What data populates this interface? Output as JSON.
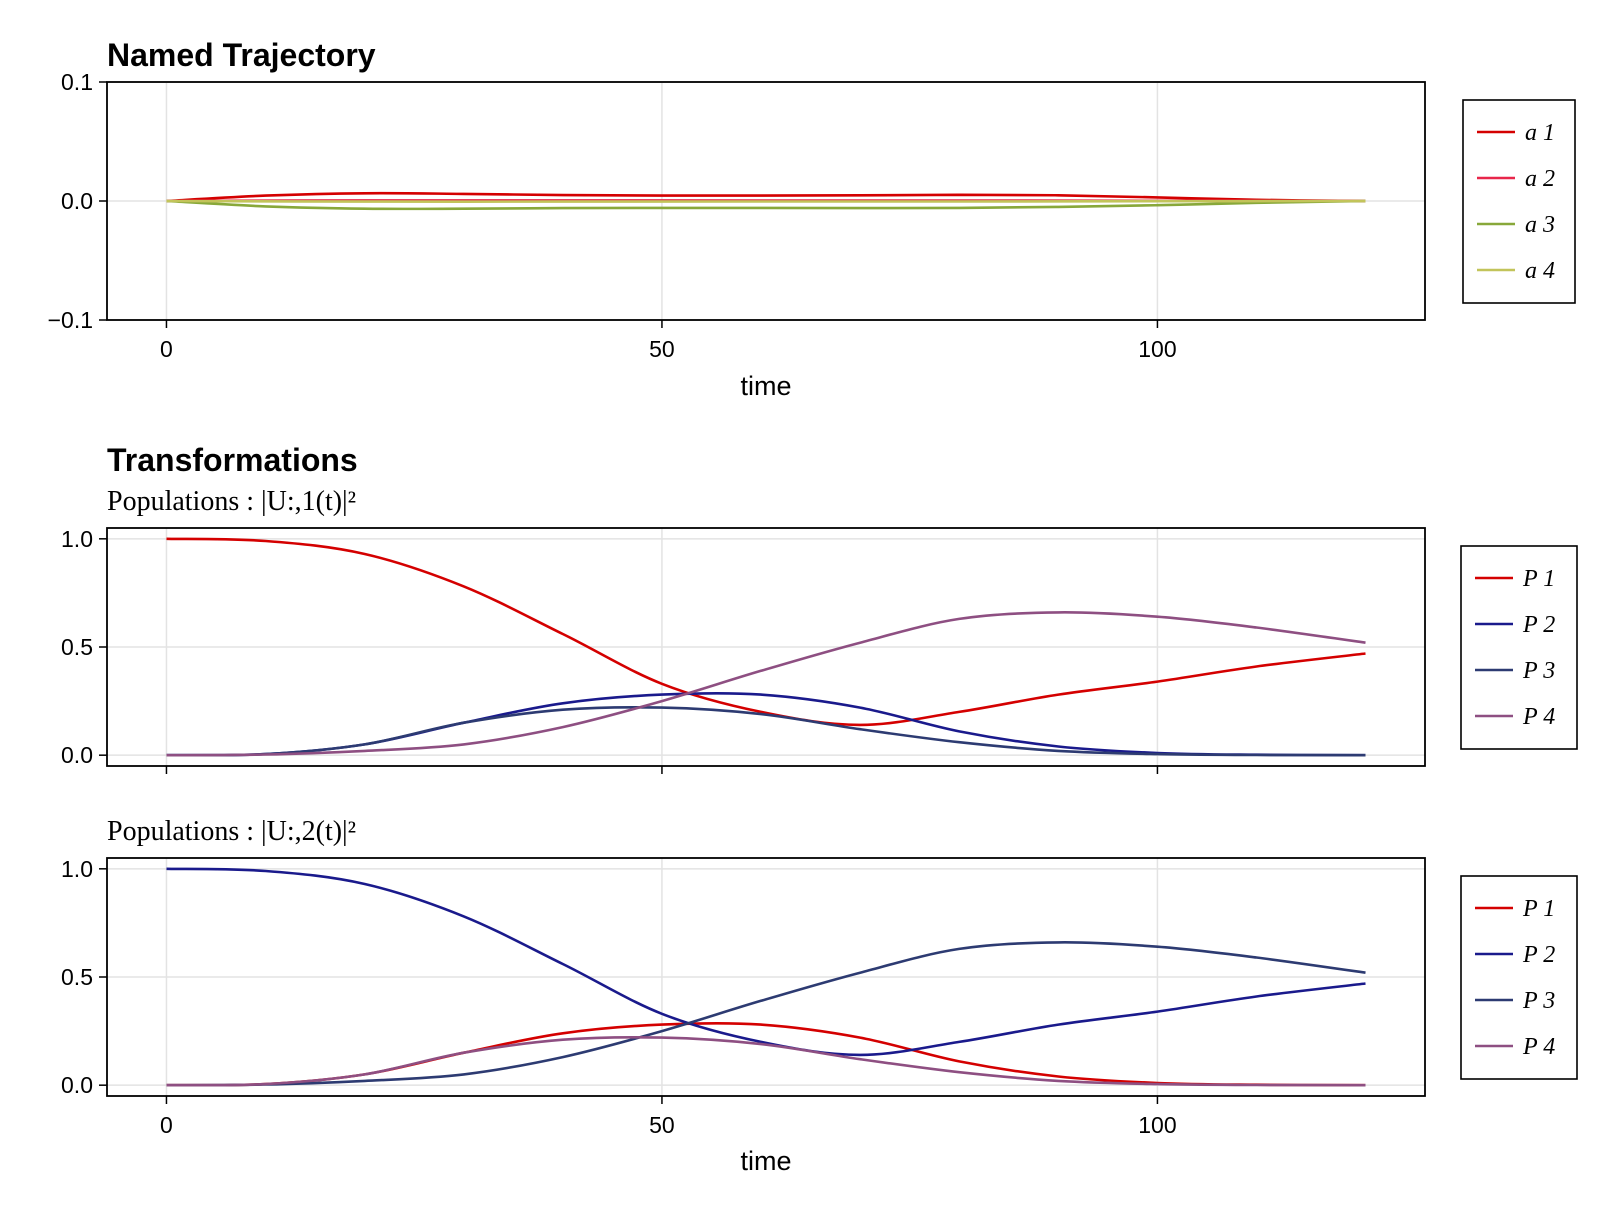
{
  "chart_data": [
    {
      "type": "line",
      "title": "Named Trajectory",
      "subtitle": "",
      "xlabel": "time",
      "ylabel": "",
      "xlim": [
        -6,
        127
      ],
      "ylim": [
        -0.1,
        0.1
      ],
      "xticks": [
        0,
        50,
        100
      ],
      "yticks": [
        -0.1,
        0.0,
        0.1
      ],
      "ytick_labels": [
        "−0.1",
        "0.0",
        "0.1"
      ],
      "grid": true,
      "legend": "right",
      "series": [
        {
          "name": "a 1",
          "color": "#d40000",
          "x": [
            0,
            10,
            20,
            30,
            40,
            50,
            60,
            70,
            80,
            90,
            100,
            110,
            121
          ],
          "y": [
            0,
            0.0045,
            0.0065,
            0.006,
            0.005,
            0.0045,
            0.0045,
            0.0048,
            0.0052,
            0.0048,
            0.003,
            0.001,
            0
          ]
        },
        {
          "name": "a 2",
          "color": "#e8264a",
          "x": [
            0,
            20,
            40,
            60,
            80,
            100,
            121
          ],
          "y": [
            0,
            0.0005,
            0.0005,
            0.0004,
            0.0004,
            0.0002,
            0
          ]
        },
        {
          "name": "a 3",
          "color": "#88a83a",
          "x": [
            0,
            10,
            20,
            30,
            40,
            50,
            60,
            70,
            80,
            90,
            100,
            110,
            121
          ],
          "y": [
            0,
            -0.0045,
            -0.0065,
            -0.0065,
            -0.006,
            -0.0058,
            -0.0058,
            -0.006,
            -0.0058,
            -0.005,
            -0.0035,
            -0.0015,
            0
          ]
        },
        {
          "name": "a 4",
          "color": "#c2c45a",
          "x": [
            0,
            20,
            40,
            60,
            80,
            100,
            121
          ],
          "y": [
            0,
            -0.0005,
            -0.0005,
            -0.0004,
            -0.0004,
            -0.0002,
            0
          ]
        }
      ]
    },
    {
      "type": "line",
      "title": "Transformations",
      "subtitle": "Populations : |U:,1(t)|²",
      "xlabel": "",
      "ylabel": "",
      "xlim": [
        -6,
        127
      ],
      "ylim": [
        -0.05,
        1.05
      ],
      "xticks": [
        0,
        50,
        100
      ],
      "yticks": [
        0.0,
        0.5,
        1.0
      ],
      "ytick_labels": [
        "0.0",
        "0.5",
        "1.0"
      ],
      "grid": true,
      "legend": "right",
      "series": [
        {
          "name": "P 1",
          "color": "#d40000",
          "x": [
            0,
            10,
            20,
            30,
            40,
            50,
            60,
            70,
            80,
            90,
            100,
            110,
            121
          ],
          "y": [
            1.0,
            0.99,
            0.93,
            0.78,
            0.56,
            0.33,
            0.2,
            0.14,
            0.2,
            0.28,
            0.34,
            0.41,
            0.47
          ]
        },
        {
          "name": "P 2",
          "color": "#1a1a8c",
          "x": [
            0,
            10,
            20,
            30,
            40,
            50,
            60,
            70,
            80,
            90,
            100,
            110,
            121
          ],
          "y": [
            0,
            0.005,
            0.05,
            0.15,
            0.24,
            0.28,
            0.28,
            0.22,
            0.11,
            0.04,
            0.01,
            0.002,
            0
          ]
        },
        {
          "name": "P 3",
          "color": "#2d3b72",
          "x": [
            0,
            10,
            20,
            30,
            40,
            50,
            60,
            70,
            80,
            90,
            100,
            110,
            121
          ],
          "y": [
            0,
            0.005,
            0.05,
            0.15,
            0.21,
            0.22,
            0.19,
            0.12,
            0.06,
            0.02,
            0.005,
            0.001,
            0
          ]
        },
        {
          "name": "P 4",
          "color": "#8e4f82",
          "x": [
            0,
            10,
            20,
            30,
            40,
            50,
            60,
            70,
            80,
            90,
            100,
            110,
            121
          ],
          "y": [
            0,
            0.003,
            0.02,
            0.05,
            0.13,
            0.25,
            0.39,
            0.52,
            0.63,
            0.66,
            0.64,
            0.59,
            0.52
          ]
        }
      ]
    },
    {
      "type": "line",
      "title": "",
      "subtitle": "Populations : |U:,2(t)|²",
      "xlabel": "time",
      "ylabel": "",
      "xlim": [
        -6,
        127
      ],
      "ylim": [
        -0.05,
        1.05
      ],
      "xticks": [
        0,
        50,
        100
      ],
      "yticks": [
        0.0,
        0.5,
        1.0
      ],
      "ytick_labels": [
        "0.0",
        "0.5",
        "1.0"
      ],
      "grid": true,
      "legend": "right",
      "series": [
        {
          "name": "P 1",
          "color": "#d40000",
          "x": [
            0,
            10,
            20,
            30,
            40,
            50,
            60,
            70,
            80,
            90,
            100,
            110,
            121
          ],
          "y": [
            0,
            0.005,
            0.05,
            0.15,
            0.24,
            0.28,
            0.28,
            0.22,
            0.11,
            0.04,
            0.01,
            0.002,
            0
          ]
        },
        {
          "name": "P 2",
          "color": "#1a1a8c",
          "x": [
            0,
            10,
            20,
            30,
            40,
            50,
            60,
            70,
            80,
            90,
            100,
            110,
            121
          ],
          "y": [
            1.0,
            0.99,
            0.93,
            0.78,
            0.56,
            0.33,
            0.2,
            0.14,
            0.2,
            0.28,
            0.34,
            0.41,
            0.47
          ]
        },
        {
          "name": "P 3",
          "color": "#2d3b72",
          "x": [
            0,
            10,
            20,
            30,
            40,
            50,
            60,
            70,
            80,
            90,
            100,
            110,
            121
          ],
          "y": [
            0,
            0.003,
            0.02,
            0.05,
            0.13,
            0.25,
            0.39,
            0.52,
            0.63,
            0.66,
            0.64,
            0.59,
            0.52
          ]
        },
        {
          "name": "P 4",
          "color": "#8e4f82",
          "x": [
            0,
            10,
            20,
            30,
            40,
            50,
            60,
            70,
            80,
            90,
            100,
            110,
            121
          ],
          "y": [
            0,
            0.005,
            0.05,
            0.15,
            0.21,
            0.22,
            0.19,
            0.12,
            0.06,
            0.02,
            0.005,
            0.001,
            0
          ]
        }
      ]
    }
  ]
}
